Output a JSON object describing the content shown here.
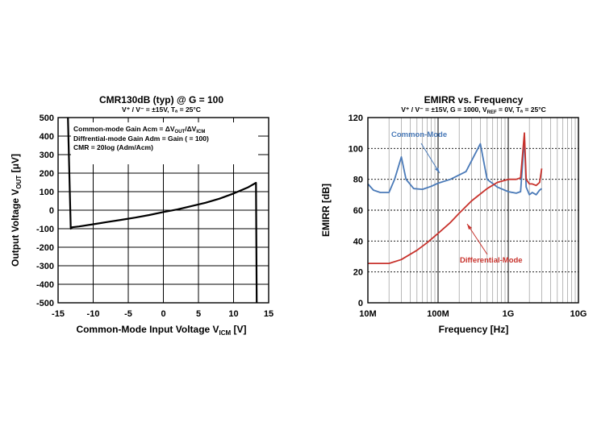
{
  "chart_data": [
    {
      "type": "line",
      "title": "CMR130dB (typ) @ G = 100",
      "subtitle": "V⁺ / V⁻ = ±15V, Tₐ = 25°C",
      "xlabel": "Common-Mode Input Voltage V",
      "xlabel_sub": "ICM",
      "xlabel_unit": " [V]",
      "ylabel": "Output Voltage V",
      "ylabel_sub": "OUT",
      "ylabel_unit": " [μV]",
      "xlim": [
        -15,
        15
      ],
      "ylim": [
        -500,
        500
      ],
      "xticks": [
        -15,
        -10,
        -5,
        0,
        5,
        10,
        15
      ],
      "yticks": [
        -500,
        -400,
        -300,
        -200,
        -100,
        0,
        100,
        200,
        300,
        400,
        500
      ],
      "grid": true,
      "annotations": [
        "Common-mode Gain Acm = ΔVOUT/ΔVICM",
        "Diffrential-mode Gain Adm = Gain ( = 100)",
        "CMR = 20log (Adm/Acm)"
      ],
      "series": [
        {
          "name": "Output",
          "color": "#000000",
          "x": [
            -13.6,
            -13.2,
            -13.0,
            -12.0,
            -10.0,
            -8.0,
            -6.0,
            -4.0,
            -2.0,
            0.0,
            2.0,
            4.0,
            6.0,
            8.0,
            10.0,
            12.0,
            13.2,
            13.3
          ],
          "y": [
            500,
            -100,
            -92,
            -88,
            -76,
            -64,
            -52,
            -40,
            -26,
            -10,
            4,
            22,
            40,
            62,
            90,
            122,
            148,
            -500
          ]
        }
      ]
    },
    {
      "type": "line",
      "title": "EMIRR vs. Frequency",
      "subtitle": "V⁺ / V⁻ = ±15V, G = 1000, V",
      "subtitle_sub": "REF",
      "subtitle_end": " = 0V, Tₐ = 25°C",
      "xlabel": "Frequency [Hz]",
      "ylabel": "EMIRR [dB]",
      "xscale": "log",
      "xlim": [
        10000000,
        10000000000
      ],
      "ylim": [
        0,
        120
      ],
      "xticks": [
        10000000,
        100000000,
        1000000000,
        10000000000
      ],
      "xticklabels": [
        "10M",
        "100M",
        "1G",
        "10G"
      ],
      "yticks": [
        0,
        20,
        40,
        60,
        80,
        100,
        120
      ],
      "grid": true,
      "annotations": [
        "Common-Mode",
        "Differential-Mode"
      ],
      "series": [
        {
          "name": "Common-Mode",
          "color": "#4a7ab8",
          "x": [
            10000000,
            12000000,
            15000000,
            20000000,
            24000000,
            30000000,
            35000000,
            45000000,
            60000000,
            80000000,
            100000000,
            150000000,
            250000000,
            400000000,
            500000000,
            700000000,
            1000000000,
            1300000000,
            1500000000,
            1700000000,
            1800000000,
            2000000000,
            2200000000,
            2500000000,
            2800000000,
            3000000000
          ],
          "y": [
            77,
            73,
            71.5,
            71.5,
            80,
            94.5,
            80,
            74,
            73.5,
            75.5,
            77.5,
            80,
            85,
            103,
            80,
            75,
            72,
            71,
            72,
            107,
            75,
            70,
            71.5,
            70,
            73,
            74
          ]
        },
        {
          "name": "Differential-Mode",
          "color": "#c8322c",
          "x": [
            10000000,
            15000000,
            20000000,
            30000000,
            50000000,
            70000000,
            100000000,
            150000000,
            200000000,
            300000000,
            500000000,
            700000000,
            1000000000,
            1300000000,
            1500000000,
            1700000000,
            1800000000,
            2000000000,
            2200000000,
            2500000000,
            2800000000,
            3000000000
          ],
          "y": [
            25.5,
            25.5,
            25.5,
            28,
            34,
            39,
            45,
            52,
            58,
            66,
            74,
            78,
            80,
            80,
            81,
            110,
            80,
            77,
            77,
            76,
            78,
            87
          ]
        }
      ]
    }
  ]
}
